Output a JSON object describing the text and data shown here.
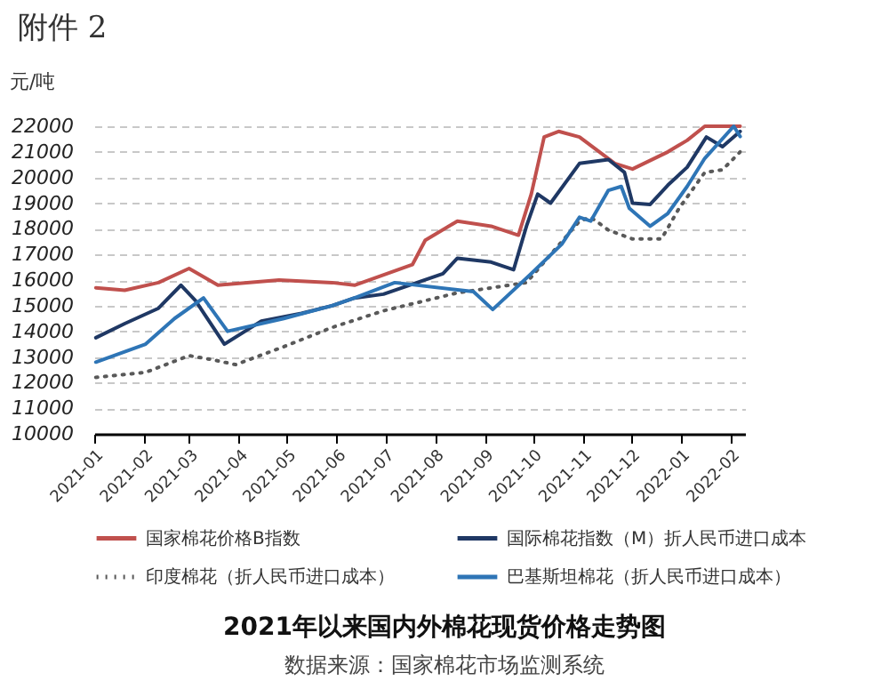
{
  "chart_data": {
    "type": "line",
    "title": "2021年以来国内外棉花现货价格走势图",
    "ylabel": "元/吨",
    "annotations": [
      "附件 2",
      "数据来源：国家棉花市场监测系统"
    ],
    "xlim": [
      "2021-01-01",
      "2022-02-10"
    ],
    "xticks": [
      "2021-01",
      "2021-02",
      "2021-03",
      "2021-04",
      "2021-05",
      "2021-06",
      "2021-07",
      "2021-08",
      "2021-09",
      "2021-10",
      "2021-11",
      "2021-12",
      "2022-01",
      "2022-02"
    ],
    "ylim": [
      10000,
      22000
    ],
    "yticks": [
      10000,
      11000,
      12000,
      13000,
      14000,
      15000,
      16000,
      17000,
      18000,
      19000,
      20000,
      21000,
      22000
    ],
    "grid": "y",
    "legend": "bottom",
    "marker": "none",
    "series": [
      {
        "name": "国家棉花价格B指数",
        "color": "#c0504d",
        "line_style": "solid",
        "x": [
          "2021-01-02",
          "2021-01-20",
          "2021-02-10",
          "2021-03-01",
          "2021-03-19",
          "2021-04-26",
          "2021-05-29",
          "2021-06-12",
          "2021-07-18",
          "2021-07-26",
          "2021-08-15",
          "2021-09-05",
          "2021-09-22",
          "2021-09-30",
          "2021-10-08",
          "2021-10-17",
          "2021-10-30",
          "2021-11-21",
          "2021-12-02",
          "2021-12-24",
          "2022-01-05",
          "2022-01-16",
          "2022-02-07"
        ],
        "values": [
          15700,
          15600,
          15900,
          16450,
          15800,
          16000,
          15900,
          15800,
          16600,
          17550,
          18300,
          18100,
          17750,
          19350,
          21580,
          21800,
          21580,
          20550,
          20330,
          21000,
          21450,
          22000,
          22000
        ]
      },
      {
        "name": "国际棉花指数（M）折人民币进口成本",
        "color": "#1f3864",
        "line_style": "solid",
        "x": [
          "2021-01-02",
          "2021-01-20",
          "2021-02-10",
          "2021-02-24",
          "2021-03-05",
          "2021-03-23",
          "2021-04-15",
          "2021-05-10",
          "2021-05-29",
          "2021-06-12",
          "2021-06-30",
          "2021-08-06",
          "2021-08-15",
          "2021-09-05",
          "2021-09-19",
          "2021-09-27",
          "2021-10-04",
          "2021-10-12",
          "2021-10-30",
          "2021-11-17",
          "2021-11-27",
          "2021-12-02",
          "2021-12-13",
          "2021-12-24",
          "2022-01-05",
          "2022-01-17",
          "2022-01-27",
          "2022-02-07"
        ],
        "values": [
          13750,
          14300,
          14900,
          15800,
          15200,
          13500,
          14400,
          14700,
          15000,
          15300,
          15450,
          16250,
          16850,
          16700,
          16400,
          18100,
          19350,
          19000,
          20550,
          20700,
          20200,
          19000,
          18950,
          19700,
          20400,
          21580,
          21200,
          21800
        ]
      },
      {
        "name": "印度棉花（折人民币进口成本）",
        "color": "#595959",
        "line_style": "dotted",
        "x": [
          "2021-01-02",
          "2021-02-02",
          "2021-03-01",
          "2021-03-15",
          "2021-03-30",
          "2021-04-29",
          "2021-05-29",
          "2021-06-30",
          "2021-08-15",
          "2021-09-27",
          "2021-10-30",
          "2021-11-06",
          "2021-11-17",
          "2021-12-02",
          "2021-12-20",
          "2021-12-31",
          "2022-01-16",
          "2022-01-27",
          "2022-02-07"
        ],
        "values": [
          12200,
          12400,
          13050,
          12900,
          12700,
          13400,
          14150,
          14800,
          15500,
          15900,
          18300,
          18450,
          17950,
          17600,
          17600,
          18800,
          20200,
          20300,
          21000
        ]
      },
      {
        "name": "巴基斯坦棉花（折人民币进口成本）",
        "color": "#2e75b6",
        "line_style": "solid",
        "x": [
          "2021-01-02",
          "2021-02-02",
          "2021-02-20",
          "2021-03-10",
          "2021-03-25",
          "2021-04-29",
          "2021-05-29",
          "2021-06-12",
          "2021-07-07",
          "2021-08-25",
          "2021-09-06",
          "2021-09-30",
          "2021-10-19",
          "2021-10-30",
          "2021-11-06",
          "2021-11-17",
          "2021-11-25",
          "2021-11-30",
          "2021-12-13",
          "2021-12-24",
          "2022-01-05",
          "2022-01-16",
          "2022-02-03",
          "2022-02-07"
        ],
        "values": [
          12800,
          13500,
          14500,
          15300,
          14000,
          14500,
          15000,
          15300,
          15900,
          15550,
          14850,
          16250,
          17400,
          18450,
          18300,
          19500,
          19650,
          18800,
          18100,
          18600,
          19650,
          20750,
          22000,
          21600
        ]
      }
    ]
  }
}
